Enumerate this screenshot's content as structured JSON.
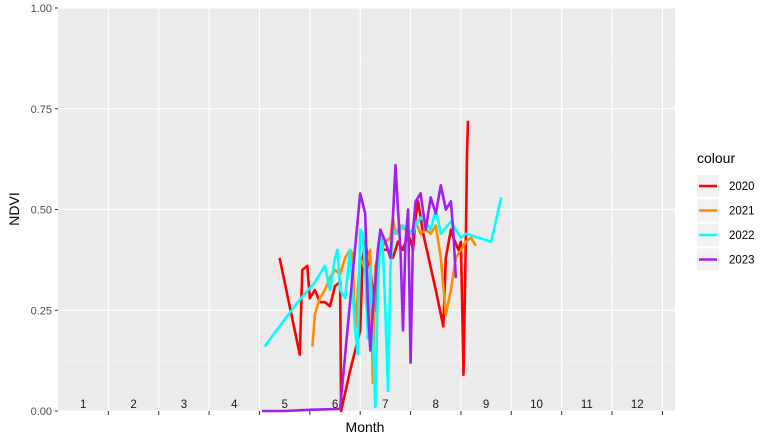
{
  "chart_data": {
    "type": "line",
    "xlabel": "Month",
    "ylabel": "NDVI",
    "ylim": [
      0,
      1
    ],
    "xlim": [
      0.5,
      12.75
    ],
    "yticks": [
      "0.00",
      "0.25",
      "0.50",
      "0.75",
      "1.00"
    ],
    "ytick_values": [
      0,
      0.25,
      0.5,
      0.75,
      1.0
    ],
    "month_labels": [
      "1",
      "2",
      "3",
      "4",
      "5",
      "6",
      "7",
      "8",
      "9",
      "10",
      "11",
      "12"
    ],
    "panel_background": "#ebebeb",
    "grid": true,
    "legend": {
      "title": "colour",
      "position": "right"
    },
    "series": [
      {
        "name": "2020",
        "color": "#ff0000",
        "points": [
          [
            4.9,
            0.38
          ],
          [
            5.3,
            0.14
          ],
          [
            5.35,
            0.35
          ],
          [
            5.45,
            0.36
          ],
          [
            5.5,
            0.28
          ],
          [
            5.6,
            0.3
          ],
          [
            5.7,
            0.27
          ],
          [
            5.8,
            0.27
          ],
          [
            5.9,
            0.26
          ],
          [
            6.0,
            0.31
          ],
          [
            6.1,
            0.32
          ],
          [
            6.12,
            0.0
          ],
          [
            6.3,
            0.1
          ],
          [
            6.5,
            0.2
          ],
          [
            6.55,
            0.38
          ],
          [
            6.6,
            0.42
          ],
          [
            6.7,
            0.35
          ],
          [
            6.8,
            0.25
          ],
          [
            6.85,
            0.32
          ],
          [
            6.9,
            0.45
          ],
          [
            6.95,
            0.4
          ],
          [
            7.05,
            0.4
          ],
          [
            7.15,
            0.38
          ],
          [
            7.25,
            0.42
          ],
          [
            7.35,
            0.4
          ],
          [
            7.45,
            0.44
          ],
          [
            7.55,
            0.4
          ],
          [
            7.6,
            0.48
          ],
          [
            7.65,
            0.52
          ],
          [
            7.75,
            0.44
          ],
          [
            8.0,
            0.3
          ],
          [
            8.15,
            0.21
          ],
          [
            8.2,
            0.38
          ],
          [
            8.3,
            0.45
          ],
          [
            8.35,
            0.43
          ],
          [
            8.45,
            0.4
          ],
          [
            8.5,
            0.42
          ],
          [
            8.55,
            0.09
          ],
          [
            8.6,
            0.45
          ],
          [
            8.62,
            0.64
          ],
          [
            8.64,
            0.72
          ]
        ]
      },
      {
        "name": "2021",
        "color": "#ff8c00",
        "points": [
          [
            5.55,
            0.16
          ],
          [
            5.6,
            0.24
          ],
          [
            5.7,
            0.28
          ],
          [
            5.8,
            0.3
          ],
          [
            5.9,
            0.33
          ],
          [
            6.0,
            0.35
          ],
          [
            6.1,
            0.34
          ],
          [
            6.2,
            0.38
          ],
          [
            6.3,
            0.4
          ],
          [
            6.35,
            0.39
          ],
          [
            6.4,
            0.2
          ],
          [
            6.5,
            0.38
          ],
          [
            6.6,
            0.35
          ],
          [
            6.7,
            0.4
          ],
          [
            6.75,
            0.07
          ],
          [
            6.8,
            0.36
          ],
          [
            6.9,
            0.4
          ],
          [
            7.0,
            0.42
          ],
          [
            7.1,
            0.43
          ],
          [
            7.15,
            0.48
          ],
          [
            7.2,
            0.44
          ],
          [
            7.3,
            0.46
          ],
          [
            7.4,
            0.45
          ],
          [
            7.5,
            0.44
          ],
          [
            7.6,
            0.47
          ],
          [
            7.7,
            0.44
          ],
          [
            7.8,
            0.45
          ],
          [
            7.9,
            0.44
          ],
          [
            8.0,
            0.46
          ],
          [
            8.1,
            0.38
          ],
          [
            8.2,
            0.24
          ],
          [
            8.3,
            0.3
          ],
          [
            8.4,
            0.38
          ],
          [
            8.5,
            0.4
          ],
          [
            8.6,
            0.42
          ],
          [
            8.7,
            0.43
          ],
          [
            8.8,
            0.41
          ]
        ]
      },
      {
        "name": "2022",
        "color": "#00ffff",
        "points": [
          [
            4.6,
            0.16
          ],
          [
            5.2,
            0.26
          ],
          [
            5.6,
            0.32
          ],
          [
            5.8,
            0.36
          ],
          [
            5.9,
            0.3
          ],
          [
            6.0,
            0.38
          ],
          [
            6.05,
            0.4
          ],
          [
            6.1,
            0.3
          ],
          [
            6.2,
            0.28
          ],
          [
            6.3,
            0.4
          ],
          [
            6.4,
            0.2
          ],
          [
            6.45,
            0.14
          ],
          [
            6.5,
            0.45
          ],
          [
            6.55,
            0.44
          ],
          [
            6.6,
            0.35
          ],
          [
            6.65,
            0.18
          ],
          [
            6.7,
            0.36
          ],
          [
            6.75,
            0.2
          ],
          [
            6.8,
            0.01
          ],
          [
            6.85,
            0.3
          ],
          [
            6.9,
            0.44
          ],
          [
            6.95,
            0.4
          ],
          [
            7.0,
            0.25
          ],
          [
            7.05,
            0.05
          ],
          [
            7.1,
            0.35
          ],
          [
            7.15,
            0.45
          ],
          [
            7.25,
            0.44
          ],
          [
            7.35,
            0.46
          ],
          [
            7.45,
            0.45
          ],
          [
            7.55,
            0.44
          ],
          [
            7.6,
            0.46
          ],
          [
            7.7,
            0.48
          ],
          [
            7.8,
            0.47
          ],
          [
            7.9,
            0.45
          ],
          [
            8.0,
            0.5
          ],
          [
            8.1,
            0.44
          ],
          [
            8.3,
            0.47
          ],
          [
            8.4,
            0.45
          ],
          [
            8.5,
            0.43
          ],
          [
            8.6,
            0.44
          ],
          [
            9.1,
            0.42
          ],
          [
            9.3,
            0.53
          ]
        ]
      },
      {
        "name": "2023",
        "color": "#a020f0",
        "points": [
          [
            4.55,
            0.0
          ],
          [
            5.0,
            0.0
          ],
          [
            5.5,
            0.003
          ],
          [
            6.05,
            0.005
          ],
          [
            6.1,
            0.005
          ],
          [
            6.5,
            0.54
          ],
          [
            6.6,
            0.49
          ],
          [
            6.65,
            0.27
          ],
          [
            6.7,
            0.15
          ],
          [
            6.75,
            0.25
          ],
          [
            6.8,
            0.32
          ],
          [
            6.85,
            0.4
          ],
          [
            6.9,
            0.45
          ],
          [
            7.0,
            0.42
          ],
          [
            7.1,
            0.38
          ],
          [
            7.15,
            0.48
          ],
          [
            7.2,
            0.61
          ],
          [
            7.25,
            0.5
          ],
          [
            7.3,
            0.4
          ],
          [
            7.35,
            0.2
          ],
          [
            7.4,
            0.42
          ],
          [
            7.45,
            0.5
          ],
          [
            7.5,
            0.12
          ],
          [
            7.55,
            0.45
          ],
          [
            7.6,
            0.52
          ],
          [
            7.7,
            0.54
          ],
          [
            7.8,
            0.45
          ],
          [
            7.9,
            0.53
          ],
          [
            8.0,
            0.49
          ],
          [
            8.1,
            0.56
          ],
          [
            8.2,
            0.5
          ],
          [
            8.3,
            0.52
          ],
          [
            8.35,
            0.44
          ],
          [
            8.4,
            0.33
          ]
        ]
      }
    ]
  }
}
